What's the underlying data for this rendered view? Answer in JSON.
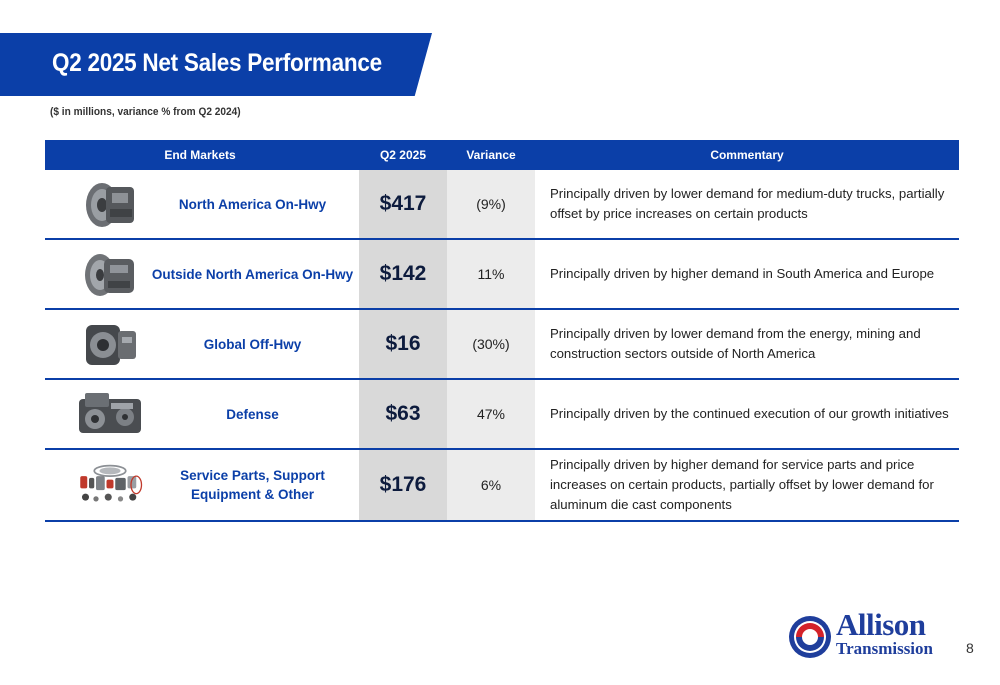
{
  "title": "Q2 2025 Net Sales Performance",
  "subtitle": "($ in millions, variance % from Q2 2024)",
  "table": {
    "headers": {
      "end_markets": "End Markets",
      "q2": "Q2 2025",
      "variance": "Variance",
      "commentary": "Commentary"
    },
    "rows": [
      {
        "market": "North America On-Hwy",
        "value": "$417",
        "variance": "(9%)",
        "commentary": "Principally driven by lower demand for medium-duty trucks, partially offset by price increases on certain products",
        "icon": "transmission-icon"
      },
      {
        "market": "Outside North America On-Hwy",
        "value": "$142",
        "variance": "11%",
        "commentary": "Principally driven by higher demand in South America and Europe",
        "icon": "transmission-icon"
      },
      {
        "market": "Global Off-Hwy",
        "value": "$16",
        "variance": "(30%)",
        "commentary": "Principally driven by lower demand from the energy, mining and construction sectors outside of North America",
        "icon": "offhwy-transmission-icon"
      },
      {
        "market": "Defense",
        "value": "$63",
        "variance": "47%",
        "commentary": "Principally driven by the continued execution of our growth initiatives",
        "icon": "defense-transmission-icon"
      },
      {
        "market": "Service Parts, Support Equipment & Other",
        "value": "$176",
        "variance": "6%",
        "commentary": "Principally driven by higher demand for service parts and price increases on certain products, partially offset by lower demand for aluminum die cast components",
        "icon": "service-parts-icon"
      }
    ]
  },
  "logo": {
    "line1": "Allison",
    "line2": "Transmission"
  },
  "page_number": "8",
  "colors": {
    "brand_blue": "#0b3fa8",
    "logo_red": "#d3222a"
  }
}
